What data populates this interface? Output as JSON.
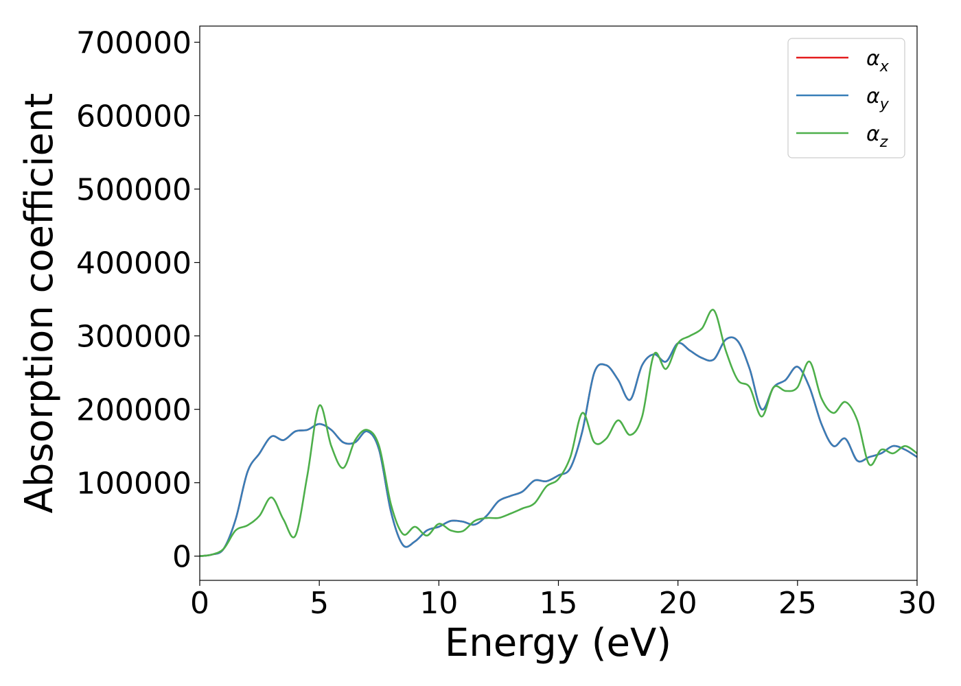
{
  "chart_data": {
    "type": "line",
    "title": "",
    "xlabel": "Energy (eV)",
    "ylabel": "Absorption coefficient",
    "xlim": [
      0,
      30
    ],
    "ylim": [
      -33000,
      722000
    ],
    "xticks": [
      0,
      5,
      10,
      15,
      20,
      25,
      30
    ],
    "yticks": [
      0,
      100000,
      200000,
      300000,
      400000,
      500000,
      600000,
      700000
    ],
    "grid": false,
    "legend_position": "upper right",
    "series": [
      {
        "name": "α_x",
        "legend_base": "α",
        "legend_sub": "x",
        "color": "#e41a1c",
        "x": [
          0,
          0.5,
          1,
          1.5,
          2,
          2.5,
          3,
          3.5,
          4,
          4.5,
          5,
          5.5,
          6,
          6.5,
          7,
          7.5,
          8,
          8.5,
          9,
          9.5,
          10,
          10.5,
          11,
          11.5,
          12,
          12.5,
          13,
          13.5,
          14,
          14.5,
          15,
          15.5,
          16,
          16.5,
          17,
          17.5,
          18,
          18.5,
          19,
          19.5,
          20,
          20.5,
          21,
          21.5,
          22,
          22.5,
          23,
          23.5,
          24,
          24.5,
          25,
          25.5,
          26,
          26.5,
          27,
          27.5,
          28,
          28.5,
          29,
          29.5,
          30
        ],
        "y": [
          0,
          2000,
          10000,
          50000,
          115000,
          140000,
          163000,
          158000,
          170000,
          172000,
          180000,
          172000,
          155000,
          155000,
          170000,
          145000,
          60000,
          15000,
          20000,
          35000,
          40000,
          48000,
          47000,
          43000,
          55000,
          75000,
          82000,
          88000,
          103000,
          102000,
          110000,
          120000,
          170000,
          250000,
          260000,
          240000,
          213000,
          260000,
          275000,
          265000,
          290000,
          280000,
          270000,
          268000,
          295000,
          293000,
          255000,
          200000,
          230000,
          240000,
          258000,
          230000,
          180000,
          150000,
          160000,
          130000,
          135000,
          140000,
          150000,
          145000,
          135000
        ]
      },
      {
        "name": "α_y",
        "legend_base": "α",
        "legend_sub": "y",
        "color": "#377eb8",
        "x": [
          0,
          0.5,
          1,
          1.5,
          2,
          2.5,
          3,
          3.5,
          4,
          4.5,
          5,
          5.5,
          6,
          6.5,
          7,
          7.5,
          8,
          8.5,
          9,
          9.5,
          10,
          10.5,
          11,
          11.5,
          12,
          12.5,
          13,
          13.5,
          14,
          14.5,
          15,
          15.5,
          16,
          16.5,
          17,
          17.5,
          18,
          18.5,
          19,
          19.5,
          20,
          20.5,
          21,
          21.5,
          22,
          22.5,
          23,
          23.5,
          24,
          24.5,
          25,
          25.5,
          26,
          26.5,
          27,
          27.5,
          28,
          28.5,
          29,
          29.5,
          30
        ],
        "y": [
          0,
          2000,
          10000,
          50000,
          115000,
          140000,
          163000,
          158000,
          170000,
          172000,
          180000,
          172000,
          155000,
          155000,
          170000,
          145000,
          60000,
          15000,
          20000,
          35000,
          40000,
          48000,
          47000,
          43000,
          55000,
          75000,
          82000,
          88000,
          103000,
          102000,
          110000,
          120000,
          170000,
          250000,
          260000,
          240000,
          213000,
          260000,
          275000,
          265000,
          290000,
          280000,
          270000,
          268000,
          295000,
          293000,
          255000,
          200000,
          230000,
          240000,
          258000,
          230000,
          180000,
          150000,
          160000,
          130000,
          135000,
          140000,
          150000,
          145000,
          135000
        ]
      },
      {
        "name": "α_z",
        "legend_base": "α",
        "legend_sub": "z",
        "color": "#4daf4a",
        "x": [
          0,
          0.5,
          1,
          1.5,
          2,
          2.5,
          3,
          3.5,
          4,
          4.5,
          5,
          5.5,
          6,
          6.5,
          7,
          7.5,
          8,
          8.5,
          9,
          9.5,
          10,
          10.5,
          11,
          11.5,
          12,
          12.5,
          13,
          13.5,
          14,
          14.5,
          15,
          15.5,
          16,
          16.5,
          17,
          17.5,
          18,
          18.5,
          19,
          19.5,
          20,
          20.5,
          21,
          21.5,
          22,
          22.5,
          23,
          23.5,
          24,
          24.5,
          25,
          25.5,
          26,
          26.5,
          27,
          27.5,
          28,
          28.5,
          29,
          29.5,
          30
        ],
        "y": [
          0,
          2000,
          10000,
          35000,
          42000,
          55000,
          80000,
          50000,
          28000,
          110000,
          205000,
          150000,
          120000,
          158000,
          172000,
          150000,
          70000,
          30000,
          40000,
          28000,
          44000,
          35000,
          34000,
          48000,
          52000,
          52000,
          58000,
          65000,
          72000,
          95000,
          105000,
          135000,
          195000,
          155000,
          160000,
          185000,
          165000,
          190000,
          275000,
          255000,
          290000,
          300000,
          310000,
          335000,
          280000,
          240000,
          230000,
          190000,
          230000,
          225000,
          230000,
          265000,
          215000,
          195000,
          210000,
          185000,
          125000,
          145000,
          140000,
          150000,
          140000
        ]
      }
    ]
  }
}
